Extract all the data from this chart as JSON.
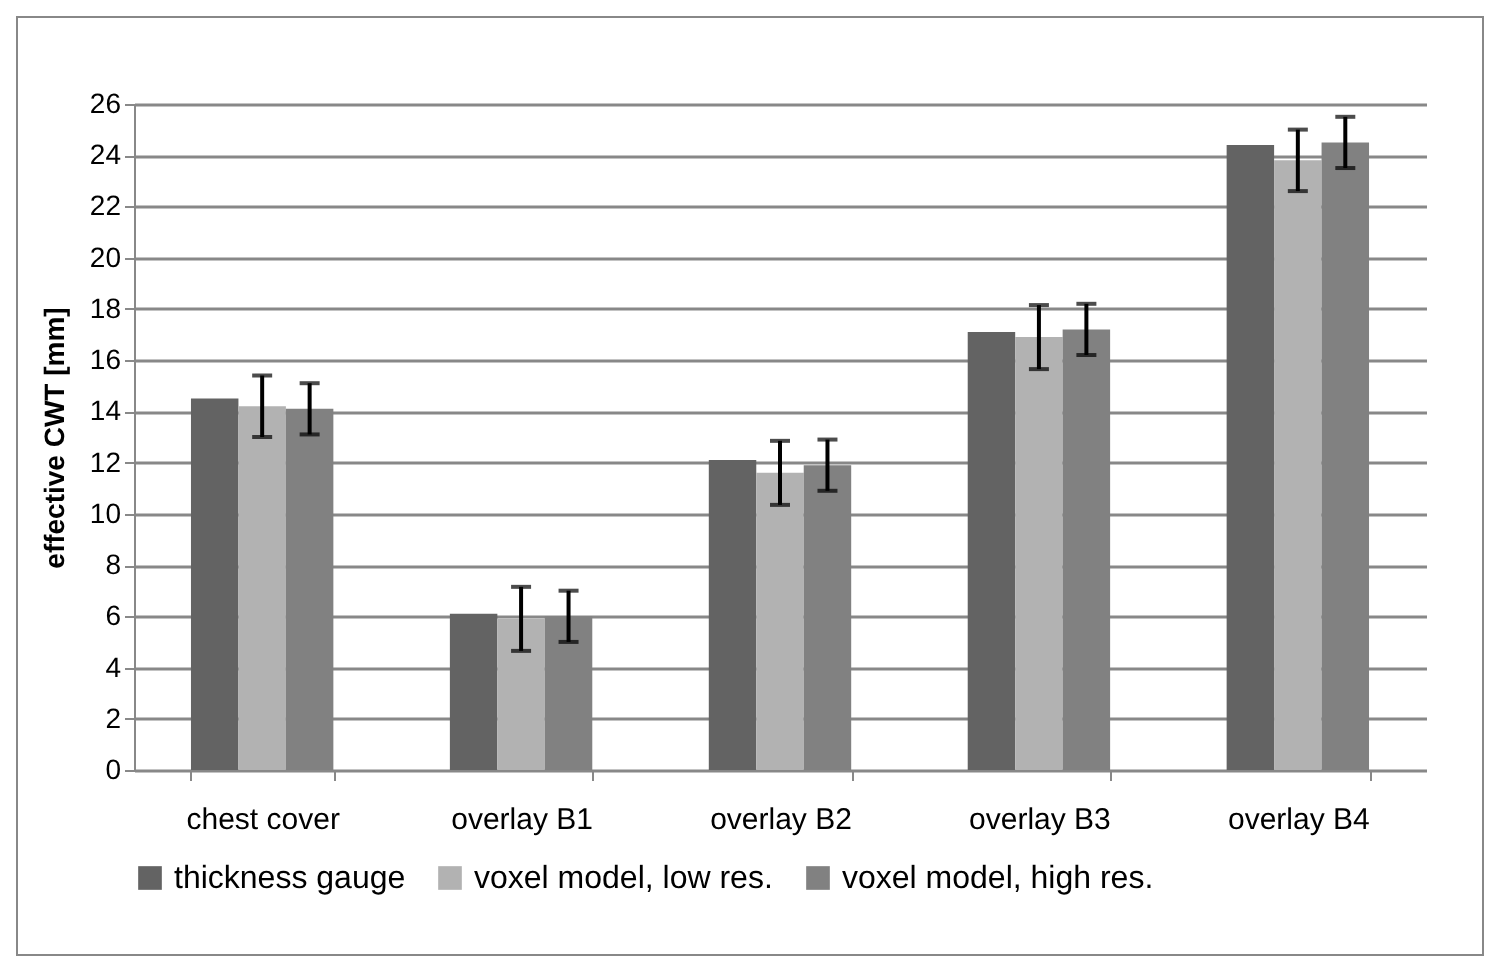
{
  "chart_data": {
    "type": "bar",
    "ylabel": "effective CWT [mm]",
    "categories": [
      "chest cover",
      "overlay B1",
      "overlay B2",
      "overlay B3",
      "overlay B4"
    ],
    "series": [
      {
        "name": "thickness gauge",
        "color": "#636363",
        "values": [
          14.5,
          6.1,
          12.1,
          17.1,
          24.4
        ]
      },
      {
        "name": "voxel model, low res.",
        "color": "#b2b2b2",
        "values": [
          14.2,
          5.9,
          11.6,
          16.9,
          23.8
        ],
        "errors": [
          1.2,
          1.25,
          1.25,
          1.25,
          1.2
        ]
      },
      {
        "name": "voxel model, high res.",
        "color": "#818181",
        "values": [
          14.1,
          6.0,
          11.9,
          17.2,
          24.5
        ],
        "errors": [
          1.0,
          1.0,
          1.0,
          1.0,
          1.0
        ]
      }
    ],
    "ylim": [
      0,
      26
    ],
    "yticks": [
      0,
      2,
      4,
      6,
      8,
      10,
      12,
      14,
      16,
      18,
      20,
      22,
      24,
      26
    ],
    "grid": "y",
    "legend": "bottom"
  }
}
